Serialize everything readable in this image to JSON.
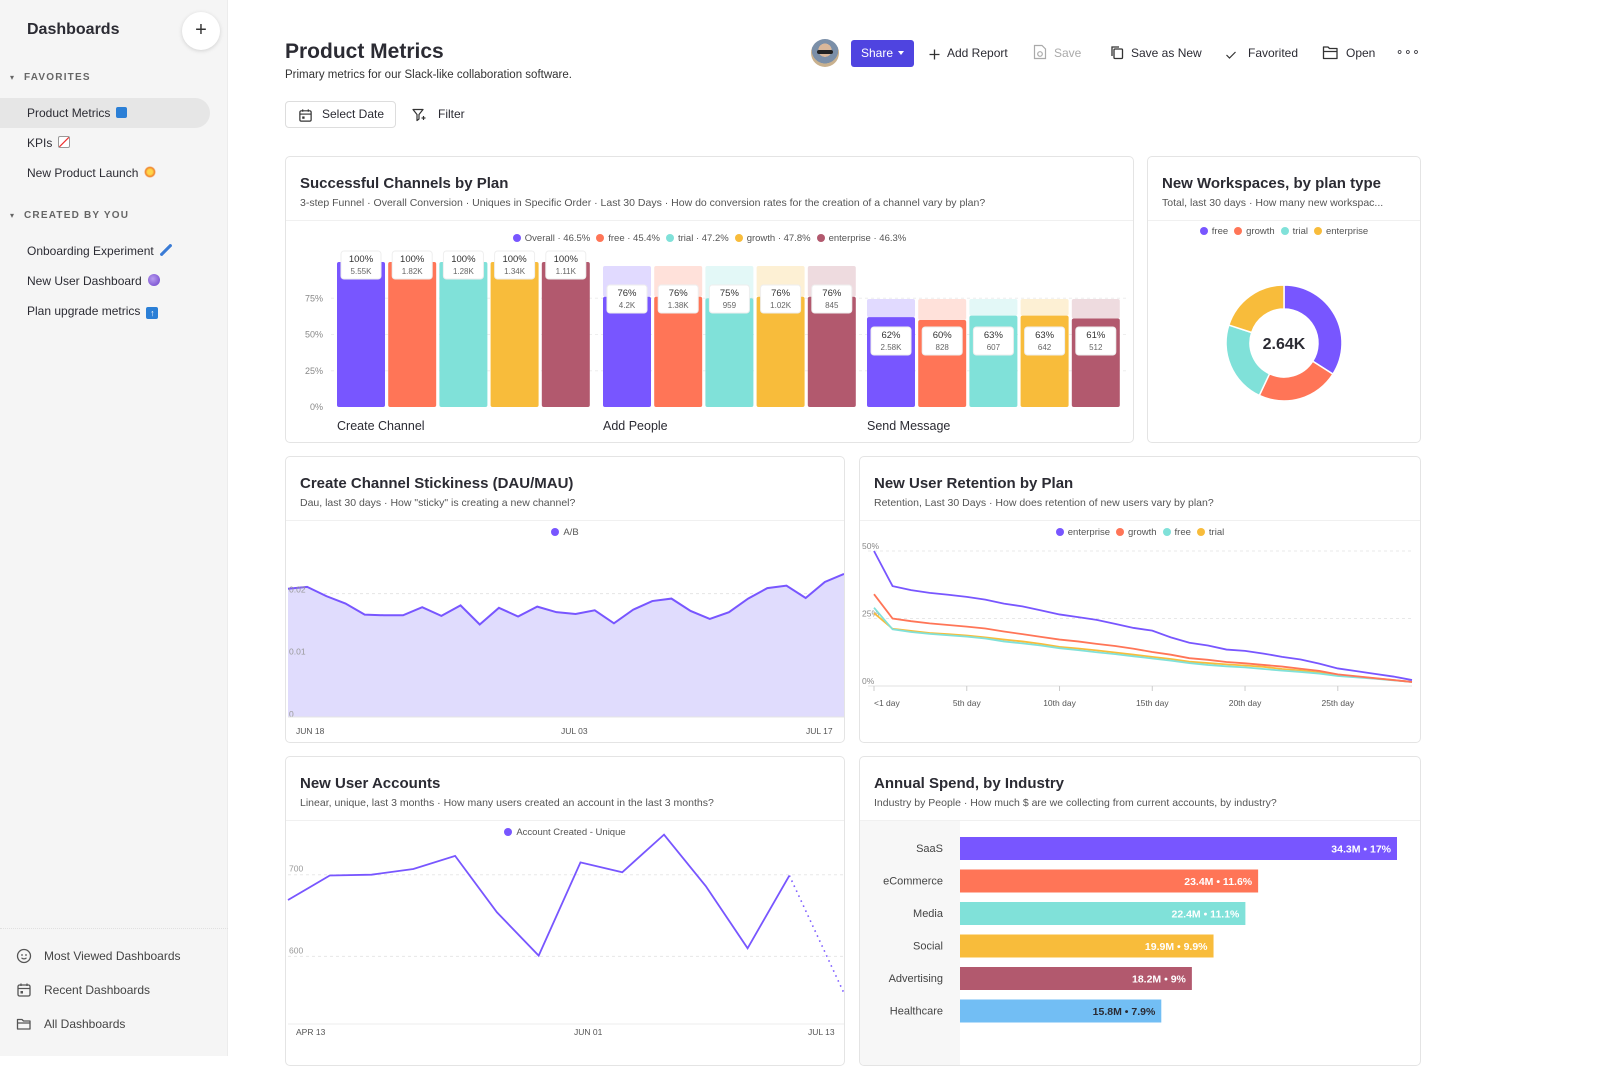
{
  "sidebar": {
    "title": "Dashboards",
    "add_label": "+",
    "sections": [
      {
        "label": "FAVORITES",
        "items": [
          {
            "label": "Product Metrics",
            "emoji": "info-emoji-icon",
            "active": true
          },
          {
            "label": "KPIs",
            "emoji": "chart-increasing-emoji-icon"
          },
          {
            "label": "New Product Launch",
            "emoji": "collision-emoji-icon"
          }
        ]
      },
      {
        "label": "CREATED BY YOU",
        "items": [
          {
            "label": "Onboarding Experiment",
            "emoji": "pencil-emoji-icon"
          },
          {
            "label": "New User Dashboard",
            "emoji": "crystal-ball-emoji-icon"
          },
          {
            "label": "Plan upgrade metrics",
            "emoji": "up-arrow-emoji-icon"
          }
        ]
      }
    ],
    "footer": [
      {
        "label": "Most Viewed Dashboards",
        "icon": "smiley-icon"
      },
      {
        "label": "Recent Dashboards",
        "icon": "calendar-icon"
      },
      {
        "label": "All Dashboards",
        "icon": "folder-icon"
      }
    ]
  },
  "header": {
    "title": "Product Metrics",
    "description": "Primary metrics for our Slack-like collaboration software.",
    "select_date": "Select Date",
    "filter": "Filter",
    "share": "Share",
    "add_report": "Add Report",
    "save": "Save",
    "save_as_new": "Save as New",
    "favorited": "Favorited",
    "open": "Open",
    "more": "⚬⚬⚬"
  },
  "colors": {
    "purple": "#7856ff",
    "orange": "#ff7557",
    "teal": "#80e1d9",
    "yellow": "#f8bc3b",
    "maroon": "#b2596e",
    "blue": "#72bef4",
    "accent": "#4f44e0"
  },
  "cards": {
    "funnel": {
      "title": "Successful Channels by Plan",
      "subtitle": "3-step Funnel · Overall Conversion · Uniques in Specific Order · Last 30 Days · How do conversion rates for the creation of a channel vary by plan?"
    },
    "workspaces": {
      "title": "New Workspaces, by plan type",
      "subtitle": "Total, last 30 days · How many new workspac..."
    },
    "stickiness": {
      "title": "Create Channel Stickiness (DAU/MAU)",
      "subtitle": "Dau, last 30 days · How \"sticky\" is creating a new channel?"
    },
    "retention": {
      "title": "New User Retention by Plan",
      "subtitle": "Retention, Last 30 Days · How does retention of new users vary by plan?"
    },
    "accounts": {
      "title": "New User Accounts",
      "subtitle": "Linear, unique, last 3 months · How many users created an account in the last 3 months?"
    },
    "spend": {
      "title": "Annual Spend, by Industry",
      "subtitle": "Industry by People · How much $ are we collecting from current accounts, by industry?"
    }
  },
  "chart_data": [
    {
      "id": "funnel",
      "type": "bar",
      "title": "Successful Channels by Plan",
      "legend": [
        {
          "name": "Overall",
          "label": "Overall · 46.5%",
          "color": "#7856ff"
        },
        {
          "name": "free",
          "label": "free · 45.4%",
          "color": "#ff7557"
        },
        {
          "name": "trial",
          "label": "trial · 47.2%",
          "color": "#80e1d9"
        },
        {
          "name": "growth",
          "label": "growth · 47.8%",
          "color": "#f8bc3b"
        },
        {
          "name": "enterprise",
          "label": "enterprise · 46.3%",
          "color": "#b2596e"
        }
      ],
      "categories": [
        "Create Channel",
        "Add People",
        "Send Message"
      ],
      "yticks": [
        "0%",
        "25%",
        "50%",
        "75%"
      ],
      "ylim": [
        0,
        100
      ],
      "series": [
        {
          "name": "Overall",
          "values": [
            100,
            76,
            62
          ],
          "counts": [
            "5.55K",
            "4.2K",
            "2.58K"
          ]
        },
        {
          "name": "free",
          "values": [
            100,
            76,
            60
          ],
          "counts": [
            "1.82K",
            "1.38K",
            "828"
          ]
        },
        {
          "name": "trial",
          "values": [
            100,
            75,
            63
          ],
          "counts": [
            "1.28K",
            "959",
            "607"
          ]
        },
        {
          "name": "growth",
          "values": [
            100,
            76,
            63
          ],
          "counts": [
            "1.34K",
            "1.02K",
            "642"
          ]
        },
        {
          "name": "enterprise",
          "values": [
            100,
            76,
            61
          ],
          "counts": [
            "1.11K",
            "845",
            "512"
          ]
        }
      ]
    },
    {
      "id": "workspaces",
      "type": "pie",
      "title": "New Workspaces, by plan type",
      "center_label": "2.64K",
      "legend": [
        "free",
        "growth",
        "trial",
        "enterprise"
      ],
      "slices": [
        {
          "name": "free",
          "value": 34,
          "color": "#7856ff"
        },
        {
          "name": "growth",
          "value": 23,
          "color": "#ff7557"
        },
        {
          "name": "trial",
          "value": 23,
          "color": "#80e1d9"
        },
        {
          "name": "enterprise",
          "value": 20,
          "color": "#f8bc3b"
        }
      ]
    },
    {
      "id": "stickiness",
      "type": "area",
      "title": "Create Channel Stickiness (DAU/MAU)",
      "legend": [
        {
          "name": "A/B",
          "color": "#7856ff"
        }
      ],
      "ylim": [
        0,
        0.03
      ],
      "yticks": [
        {
          "value": 0,
          "label": "0"
        },
        {
          "value": 0.01,
          "label": "0.01"
        },
        {
          "value": 0.02,
          "label": "0.02"
        }
      ],
      "xticks": [
        "JUN 18",
        "JUL 03",
        "JUL 17"
      ],
      "values": [
        0.0208,
        0.0211,
        0.0196,
        0.0184,
        0.0166,
        0.0165,
        0.0165,
        0.0178,
        0.0164,
        0.0181,
        0.015,
        0.0177,
        0.0163,
        0.0179,
        0.017,
        0.0167,
        0.0173,
        0.0152,
        0.0174,
        0.0188,
        0.0192,
        0.0172,
        0.0159,
        0.017,
        0.0192,
        0.0209,
        0.0213,
        0.0193,
        0.0219,
        0.0232
      ]
    },
    {
      "id": "retention",
      "type": "line",
      "title": "New User Retention by Plan",
      "legend": [
        {
          "name": "enterprise",
          "color": "#7856ff"
        },
        {
          "name": "growth",
          "color": "#ff7557"
        },
        {
          "name": "free",
          "color": "#80e1d9"
        },
        {
          "name": "trial",
          "color": "#f8bc3b"
        }
      ],
      "ylim": [
        0,
        50
      ],
      "yticks": [
        {
          "value": 0,
          "label": "0%"
        },
        {
          "value": 25,
          "label": "25%"
        },
        {
          "value": 50,
          "label": "50%"
        }
      ],
      "xticks": [
        "<1 day",
        "5th day",
        "10th day",
        "15th day",
        "20th day",
        "25th day"
      ],
      "x": [
        0,
        1,
        2,
        3,
        4,
        5,
        6,
        7,
        8,
        9,
        10,
        11,
        12,
        13,
        14,
        15,
        16,
        17,
        18,
        19,
        20,
        21,
        22,
        23,
        24,
        25,
        26,
        27,
        28,
        29
      ],
      "series": [
        {
          "name": "enterprise",
          "values": [
            50,
            37,
            35.5,
            34.5,
            33.8,
            33,
            32,
            30.5,
            29.5,
            28,
            26.5,
            25.5,
            24.5,
            23,
            21.5,
            20.5,
            18,
            16,
            15,
            13.5,
            13,
            12,
            10.8,
            9.8,
            8.3,
            6.5,
            5.5,
            4.5,
            3.5,
            2.2
          ]
        },
        {
          "name": "growth",
          "values": [
            34,
            25,
            24,
            23.2,
            22.6,
            22,
            21.3,
            20.2,
            19.2,
            18.2,
            17.2,
            16.5,
            15.6,
            14.8,
            13.8,
            12.6,
            11.6,
            10.3,
            9.7,
            8.9,
            8.4,
            7.8,
            7.2,
            6.4,
            5.6,
            4.3,
            3.6,
            2.9,
            2.2,
            1.5
          ]
        },
        {
          "name": "free",
          "values": [
            29,
            21,
            20,
            19.3,
            18.8,
            18.3,
            17.6,
            16.5,
            15.8,
            15,
            14,
            13.3,
            12.5,
            11.8,
            11,
            10.2,
            9.4,
            8.5,
            7.8,
            7.3,
            6.9,
            6.3,
            5.7,
            5.2,
            4.6,
            3.7,
            3.2,
            2.7,
            2.1,
            1.5
          ]
        },
        {
          "name": "trial",
          "values": [
            27,
            21.2,
            20.4,
            19.6,
            19.2,
            18.7,
            18,
            17.2,
            16.5,
            15.6,
            14.5,
            13.9,
            13.2,
            12.4,
            11.6,
            10.8,
            10,
            9,
            8.5,
            8,
            7.6,
            7.1,
            6.3,
            5.8,
            5,
            4.1,
            3.5,
            2.8,
            2.2,
            1.5
          ]
        }
      ]
    },
    {
      "id": "accounts",
      "type": "line",
      "title": "New User Accounts",
      "legend": [
        {
          "name": "Account Created - Unique",
          "color": "#7856ff"
        }
      ],
      "ylim": [
        510,
        740
      ],
      "yticks": [
        {
          "value": 600,
          "label": "600"
        },
        {
          "value": 700,
          "label": "700"
        }
      ],
      "xticks": [
        "APR 13",
        "JUN 01",
        "JUL 13"
      ],
      "values": [
        669,
        699,
        700,
        707,
        723,
        654,
        601,
        715,
        703,
        749,
        686,
        610,
        699
      ],
      "incomplete_last": 555
    },
    {
      "id": "spend",
      "type": "bar",
      "orientation": "horizontal",
      "title": "Annual Spend, by Industry",
      "categories": [
        "SaaS",
        "eCommerce",
        "Media",
        "Social",
        "Advertising",
        "Healthcare"
      ],
      "values": [
        34.3,
        23.4,
        22.4,
        19.9,
        18.2,
        15.8
      ],
      "percents": [
        17,
        11.6,
        11.1,
        9.9,
        9,
        7.9
      ],
      "labels": [
        "34.3M • 17%",
        "23.4M • 11.6%",
        "22.4M • 11.1%",
        "19.9M • 9.9%",
        "18.2M • 9%",
        "15.8M • 7.9%"
      ],
      "colors": [
        "#7856ff",
        "#ff7557",
        "#80e1d9",
        "#f8bc3b",
        "#b2596e",
        "#72bef4"
      ],
      "xlim": [
        0,
        34.3
      ]
    }
  ]
}
